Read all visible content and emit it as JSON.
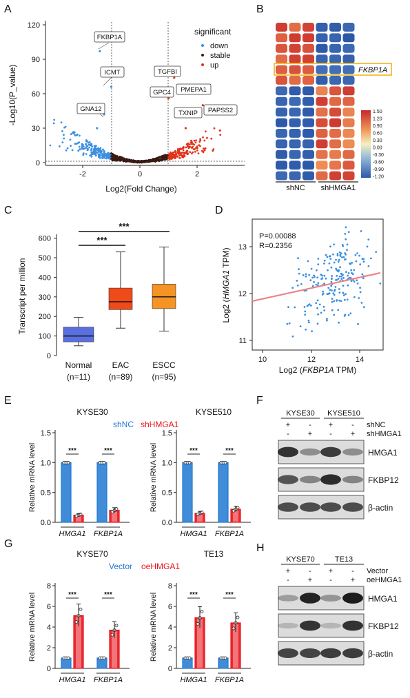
{
  "panels": {
    "A": {
      "letter": "A",
      "xlabel": "Log2(Fold Change)",
      "ylabel": "-Log10(P_value)",
      "xticks": [
        "-2",
        "0",
        "2"
      ],
      "yticks": [
        "0",
        "30",
        "60",
        "90",
        "120"
      ],
      "legend_title": "significant",
      "legend": [
        {
          "label": "down",
          "color": "#3d8fe0"
        },
        {
          "label": "stable",
          "color": "#3a1a12"
        },
        {
          "label": "up",
          "color": "#e0341a"
        }
      ],
      "genes": [
        "FKBP1A",
        "ICMT",
        "GNA12",
        "TGFBI",
        "GPC4",
        "PMEPA1",
        "TXNIP",
        "PAPSS2"
      ]
    },
    "B": {
      "letter": "B",
      "highlight_gene": "FKBP1A",
      "groups": [
        "shNC",
        "shHMGA1"
      ],
      "scale_ticks": [
        "1.50",
        "1.20",
        "0.90",
        "0.60",
        "0.30",
        "0.00",
        "-0.30",
        "-0.60",
        "-0.90",
        "-1.20"
      ]
    },
    "C": {
      "letter": "C",
      "ylabel": "Transcript per million",
      "yticks": [
        "0",
        "100",
        "200",
        "300",
        "400",
        "500",
        "600"
      ],
      "groups": [
        {
          "name": "Normal",
          "n": "(n=11)",
          "color": "#5a6fe0",
          "min": 50,
          "q1": 70,
          "median": 100,
          "q3": 145,
          "max": 195
        },
        {
          "name": "EAC",
          "n": "(n=89)",
          "color": "#f04a1a",
          "min": 140,
          "q1": 235,
          "median": 275,
          "q3": 345,
          "max": 530
        },
        {
          "name": "ESCC",
          "n": "(n=95)",
          "color": "#f59325",
          "min": 125,
          "q1": 240,
          "median": 300,
          "q3": 365,
          "max": 555
        }
      ],
      "sig": [
        "***",
        "***"
      ]
    },
    "D": {
      "letter": "D",
      "p_text": "P=0.00088",
      "r_text": "R=0.2356",
      "xlabel_pre": "Log2 (",
      "xlabel_it": "FKBP1A",
      "xlabel_post": " TPM)",
      "ylabel_pre": "Log2 (",
      "ylabel_it": "HMGA1",
      "ylabel_post": " TPM)",
      "xticks": [
        "10",
        "12",
        "14"
      ],
      "yticks": [
        "11",
        "12",
        "13"
      ]
    },
    "E": {
      "letter": "E",
      "legend_a": "shNC",
      "legend_b": "shHMGA1",
      "ylabel": "Relative mRNA level",
      "yticks": [
        "0.0",
        "0.5",
        "1.0",
        "1.5"
      ],
      "genes": [
        "HMGA1",
        "FKBP1A"
      ],
      "sig": "***",
      "charts": [
        {
          "title": "KYSE30",
          "values": [
            1.0,
            0.12,
            1.0,
            0.2
          ]
        },
        {
          "title": "KYSE510",
          "values": [
            1.0,
            0.15,
            1.0,
            0.22
          ]
        }
      ]
    },
    "F": {
      "letter": "F",
      "cell_lines": [
        "KYSE30",
        "KYSE510"
      ],
      "rows": [
        "shNC",
        "shHMGA1"
      ],
      "plus": "+",
      "minus": "-",
      "bands": [
        "HMGA1",
        "FKBP12",
        "β-actin"
      ]
    },
    "G": {
      "letter": "G",
      "legend_a": "Vector",
      "legend_b": "oeHMGA1",
      "ylabel": "Relative mRNA level",
      "yticks": [
        "0",
        "2",
        "4",
        "6",
        "8"
      ],
      "genes": [
        "HMGA1",
        "FKBP1A"
      ],
      "sig": "***",
      "charts": [
        {
          "title": "KYSE70",
          "values": [
            1.0,
            5.1,
            1.0,
            3.7
          ]
        },
        {
          "title": "TE13",
          "values": [
            1.0,
            4.9,
            1.0,
            4.4
          ]
        }
      ]
    },
    "H": {
      "letter": "H",
      "cell_lines": [
        "KYSE70",
        "TE13"
      ],
      "rows": [
        "Vector",
        "oeHMGA1"
      ],
      "plus": "+",
      "minus": "-",
      "bands": [
        "HMGA1",
        "FKBP12",
        "β-actin"
      ]
    }
  },
  "colors": {
    "blue": "#1f78d1",
    "red": "#e8141c"
  }
}
